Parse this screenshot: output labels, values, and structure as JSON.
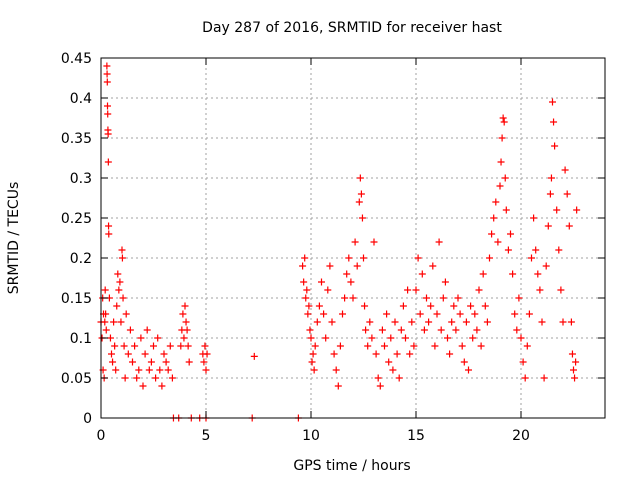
{
  "chart_data": {
    "type": "scatter",
    "title": "Day 287 of 2016, SRMTID for receiver hast",
    "xlabel": "GPS time / hours",
    "ylabel": "SRMTID / TECUs",
    "xlim": [
      0,
      24
    ],
    "ylim": [
      0,
      0.45
    ],
    "xticks": [
      0,
      5,
      10,
      15,
      20
    ],
    "yticks": [
      0,
      0.05,
      0.1,
      0.15,
      0.2,
      0.25,
      0.3,
      0.35,
      0.4,
      0.45
    ],
    "xtick_labels": [
      "0",
      "5",
      "10",
      "15",
      "20"
    ],
    "ytick_labels": [
      "0",
      "0.05",
      "0.1",
      "0.15",
      "0.2",
      "0.25",
      "0.3",
      "0.35",
      "0.4",
      "0.45"
    ],
    "grid": true,
    "marker": "+",
    "color": "#ff0000",
    "series": [
      {
        "name": "SRMTID",
        "points": [
          [
            0.0,
            0.12
          ],
          [
            0.05,
            0.1
          ],
          [
            0.08,
            0.15
          ],
          [
            0.1,
            0.06
          ],
          [
            0.12,
            0.13
          ],
          [
            0.15,
            0.05
          ],
          [
            0.18,
            0.12
          ],
          [
            0.2,
            0.16
          ],
          [
            0.22,
            0.13
          ],
          [
            0.25,
            0.11
          ],
          [
            0.28,
            0.44
          ],
          [
            0.29,
            0.43
          ],
          [
            0.3,
            0.42
          ],
          [
            0.31,
            0.39
          ],
          [
            0.32,
            0.38
          ],
          [
            0.33,
            0.36
          ],
          [
            0.34,
            0.355
          ],
          [
            0.35,
            0.32
          ],
          [
            0.36,
            0.24
          ],
          [
            0.37,
            0.23
          ],
          [
            0.4,
            0.15
          ],
          [
            0.45,
            0.1
          ],
          [
            0.5,
            0.08
          ],
          [
            0.55,
            0.07
          ],
          [
            0.6,
            0.12
          ],
          [
            0.65,
            0.09
          ],
          [
            0.7,
            0.06
          ],
          [
            0.75,
            0.14
          ],
          [
            0.8,
            0.18
          ],
          [
            0.85,
            0.16
          ],
          [
            0.9,
            0.17
          ],
          [
            0.95,
            0.12
          ],
          [
            1.0,
            0.21
          ],
          [
            1.02,
            0.2
          ],
          [
            1.05,
            0.15
          ],
          [
            1.1,
            0.09
          ],
          [
            1.15,
            0.05
          ],
          [
            1.2,
            0.13
          ],
          [
            1.3,
            0.08
          ],
          [
            1.4,
            0.11
          ],
          [
            1.5,
            0.07
          ],
          [
            1.6,
            0.09
          ],
          [
            1.7,
            0.05
          ],
          [
            1.8,
            0.06
          ],
          [
            1.9,
            0.1
          ],
          [
            2.0,
            0.04
          ],
          [
            2.1,
            0.08
          ],
          [
            2.2,
            0.11
          ],
          [
            2.3,
            0.06
          ],
          [
            2.4,
            0.07
          ],
          [
            2.5,
            0.09
          ],
          [
            2.6,
            0.05
          ],
          [
            2.7,
            0.1
          ],
          [
            2.8,
            0.06
          ],
          [
            2.9,
            0.04
          ],
          [
            3.0,
            0.08
          ],
          [
            3.1,
            0.07
          ],
          [
            3.2,
            0.06
          ],
          [
            3.3,
            0.09
          ],
          [
            3.4,
            0.05
          ],
          [
            3.45,
            0.0
          ],
          [
            3.7,
            0.0
          ],
          [
            3.8,
            0.09
          ],
          [
            3.85,
            0.11
          ],
          [
            3.9,
            0.13
          ],
          [
            3.95,
            0.1
          ],
          [
            4.0,
            0.14
          ],
          [
            4.05,
            0.12
          ],
          [
            4.1,
            0.11
          ],
          [
            4.15,
            0.09
          ],
          [
            4.2,
            0.07
          ],
          [
            4.3,
            0.0
          ],
          [
            4.7,
            0.0
          ],
          [
            4.85,
            0.08
          ],
          [
            4.9,
            0.07
          ],
          [
            4.95,
            0.09
          ],
          [
            5.0,
            0.06
          ],
          [
            5.05,
            0.08
          ],
          [
            5.0,
            0.0
          ],
          [
            7.2,
            0.0
          ],
          [
            7.3,
            0.077
          ],
          [
            9.4,
            0.0
          ],
          [
            9.6,
            0.19
          ],
          [
            9.65,
            0.17
          ],
          [
            9.7,
            0.2
          ],
          [
            9.75,
            0.15
          ],
          [
            9.8,
            0.16
          ],
          [
            9.85,
            0.13
          ],
          [
            9.9,
            0.14
          ],
          [
            9.95,
            0.11
          ],
          [
            10.0,
            0.1
          ],
          [
            10.05,
            0.07
          ],
          [
            10.1,
            0.08
          ],
          [
            10.15,
            0.06
          ],
          [
            10.2,
            0.09
          ],
          [
            10.3,
            0.12
          ],
          [
            10.4,
            0.14
          ],
          [
            10.5,
            0.17
          ],
          [
            10.6,
            0.13
          ],
          [
            10.7,
            0.1
          ],
          [
            10.8,
            0.16
          ],
          [
            10.9,
            0.19
          ],
          [
            11.0,
            0.12
          ],
          [
            11.1,
            0.08
          ],
          [
            11.2,
            0.06
          ],
          [
            11.3,
            0.04
          ],
          [
            11.4,
            0.09
          ],
          [
            11.5,
            0.13
          ],
          [
            11.6,
            0.15
          ],
          [
            11.7,
            0.18
          ],
          [
            11.8,
            0.2
          ],
          [
            11.9,
            0.17
          ],
          [
            12.0,
            0.15
          ],
          [
            12.1,
            0.22
          ],
          [
            12.2,
            0.19
          ],
          [
            12.3,
            0.27
          ],
          [
            12.35,
            0.3
          ],
          [
            12.4,
            0.28
          ],
          [
            12.45,
            0.25
          ],
          [
            12.5,
            0.2
          ],
          [
            12.55,
            0.14
          ],
          [
            12.6,
            0.11
          ],
          [
            12.7,
            0.09
          ],
          [
            12.8,
            0.12
          ],
          [
            12.9,
            0.1
          ],
          [
            13.0,
            0.22
          ],
          [
            13.1,
            0.08
          ],
          [
            13.2,
            0.05
          ],
          [
            13.3,
            0.04
          ],
          [
            13.4,
            0.11
          ],
          [
            13.5,
            0.09
          ],
          [
            13.6,
            0.13
          ],
          [
            13.7,
            0.07
          ],
          [
            13.8,
            0.1
          ],
          [
            13.9,
            0.06
          ],
          [
            14.0,
            0.12
          ],
          [
            14.1,
            0.08
          ],
          [
            14.2,
            0.05
          ],
          [
            14.3,
            0.11
          ],
          [
            14.4,
            0.14
          ],
          [
            14.5,
            0.1
          ],
          [
            14.6,
            0.16
          ],
          [
            14.7,
            0.08
          ],
          [
            14.8,
            0.12
          ],
          [
            14.9,
            0.09
          ],
          [
            15.0,
            0.16
          ],
          [
            15.1,
            0.2
          ],
          [
            15.2,
            0.13
          ],
          [
            15.3,
            0.18
          ],
          [
            15.4,
            0.11
          ],
          [
            15.5,
            0.15
          ],
          [
            15.6,
            0.12
          ],
          [
            15.7,
            0.14
          ],
          [
            15.8,
            0.19
          ],
          [
            15.9,
            0.09
          ],
          [
            16.0,
            0.13
          ],
          [
            16.1,
            0.22
          ],
          [
            16.2,
            0.11
          ],
          [
            16.3,
            0.15
          ],
          [
            16.4,
            0.17
          ],
          [
            16.5,
            0.1
          ],
          [
            16.6,
            0.08
          ],
          [
            16.7,
            0.12
          ],
          [
            16.8,
            0.14
          ],
          [
            16.9,
            0.11
          ],
          [
            17.0,
            0.15
          ],
          [
            17.1,
            0.13
          ],
          [
            17.2,
            0.09
          ],
          [
            17.3,
            0.07
          ],
          [
            17.4,
            0.12
          ],
          [
            17.5,
            0.06
          ],
          [
            17.6,
            0.14
          ],
          [
            17.7,
            0.1
          ],
          [
            17.8,
            0.13
          ],
          [
            17.9,
            0.11
          ],
          [
            18.0,
            0.16
          ],
          [
            18.1,
            0.09
          ],
          [
            18.2,
            0.18
          ],
          [
            18.3,
            0.14
          ],
          [
            18.4,
            0.12
          ],
          [
            18.5,
            0.2
          ],
          [
            18.6,
            0.23
          ],
          [
            18.7,
            0.25
          ],
          [
            18.8,
            0.27
          ],
          [
            18.9,
            0.22
          ],
          [
            19.0,
            0.29
          ],
          [
            19.05,
            0.32
          ],
          [
            19.1,
            0.35
          ],
          [
            19.15,
            0.375
          ],
          [
            19.2,
            0.37
          ],
          [
            19.25,
            0.3
          ],
          [
            19.3,
            0.26
          ],
          [
            19.4,
            0.21
          ],
          [
            19.5,
            0.23
          ],
          [
            19.6,
            0.18
          ],
          [
            19.7,
            0.13
          ],
          [
            19.8,
            0.11
          ],
          [
            19.9,
            0.15
          ],
          [
            20.0,
            0.1
          ],
          [
            20.1,
            0.07
          ],
          [
            20.2,
            0.05
          ],
          [
            20.3,
            0.09
          ],
          [
            20.4,
            0.13
          ],
          [
            20.5,
            0.2
          ],
          [
            20.6,
            0.25
          ],
          [
            20.7,
            0.21
          ],
          [
            20.8,
            0.18
          ],
          [
            20.9,
            0.16
          ],
          [
            21.0,
            0.12
          ],
          [
            21.1,
            0.05
          ],
          [
            21.2,
            0.19
          ],
          [
            21.3,
            0.24
          ],
          [
            21.4,
            0.28
          ],
          [
            21.45,
            0.3
          ],
          [
            21.5,
            0.395
          ],
          [
            21.55,
            0.37
          ],
          [
            21.6,
            0.34
          ],
          [
            21.7,
            0.26
          ],
          [
            21.8,
            0.21
          ],
          [
            21.9,
            0.16
          ],
          [
            22.0,
            0.12
          ],
          [
            22.1,
            0.31
          ],
          [
            22.2,
            0.28
          ],
          [
            22.3,
            0.24
          ],
          [
            22.4,
            0.12
          ],
          [
            22.45,
            0.08
          ],
          [
            22.5,
            0.06
          ],
          [
            22.55,
            0.05
          ],
          [
            22.6,
            0.07
          ],
          [
            22.65,
            0.26
          ]
        ]
      }
    ]
  }
}
